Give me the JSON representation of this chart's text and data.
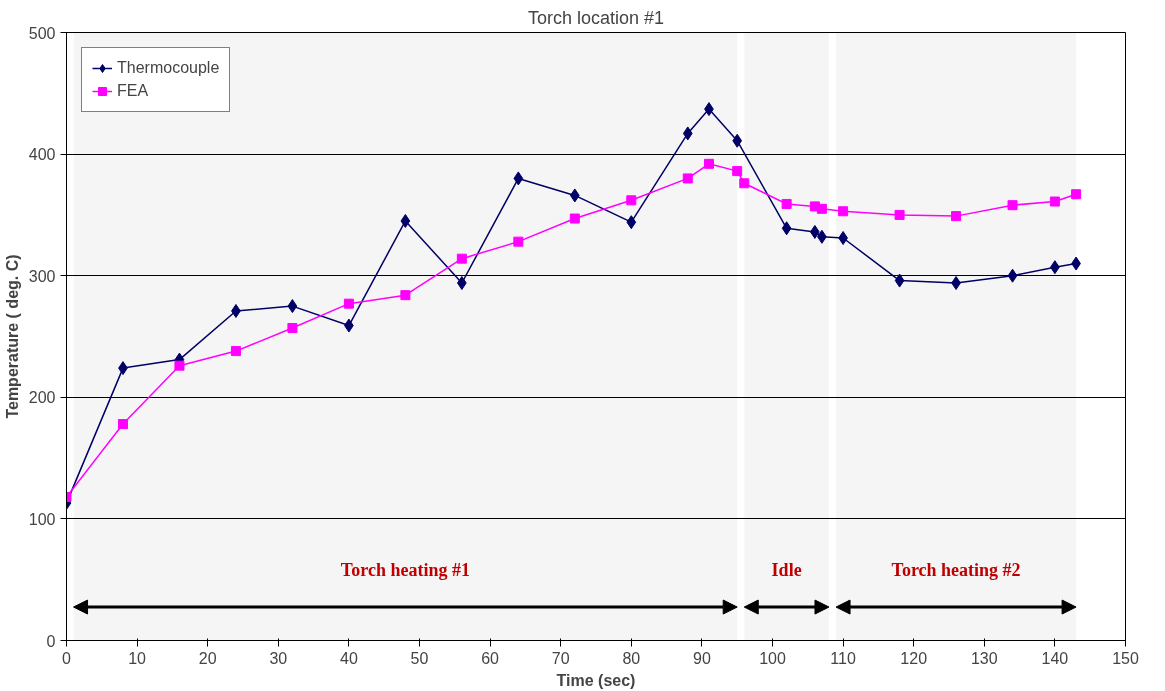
{
  "chart_data": {
    "type": "line",
    "title": "Torch location #1",
    "xlabel": "Time (sec)",
    "ylabel": "Temperature ( deg. C)",
    "xlim": [
      0,
      150
    ],
    "xticks": [
      0,
      10,
      20,
      30,
      40,
      50,
      60,
      70,
      80,
      90,
      100,
      110,
      120,
      130,
      140,
      150
    ],
    "ylim": [
      0,
      500
    ],
    "yticks": [
      0,
      100,
      200,
      300,
      400,
      500
    ],
    "grid": "y",
    "legend": "top left",
    "series": [
      {
        "name": "Thermocouple",
        "color": "#000066",
        "marker": "diamond",
        "x": [
          0,
          8,
          16,
          24,
          32,
          40,
          48,
          56,
          64,
          72,
          80,
          88,
          91,
          95,
          102,
          106,
          107,
          110,
          118,
          126,
          134,
          140,
          143
        ],
        "values": [
          113,
          224,
          231,
          271,
          275,
          259,
          345,
          294,
          380,
          366,
          344,
          417,
          437,
          411,
          339,
          336,
          332,
          331,
          296,
          294,
          300,
          307,
          310
        ]
      },
      {
        "name": "FEA",
        "color": "#ff00ff",
        "marker": "square",
        "x": [
          0,
          8,
          16,
          24,
          32,
          40,
          48,
          56,
          64,
          72,
          80,
          88,
          91,
          95,
          96,
          102,
          106,
          107,
          110,
          118,
          126,
          134,
          140,
          143
        ],
        "values": [
          118,
          178,
          226,
          238,
          257,
          277,
          284,
          314,
          328,
          347,
          362,
          380,
          392,
          386,
          376,
          359,
          357,
          355,
          353,
          350,
          349,
          358,
          361,
          367
        ]
      }
    ],
    "bands": [
      {
        "axis": "x",
        "from": 1,
        "to": 95,
        "label": "Torch heating #1",
        "color": "#000000"
      },
      {
        "axis": "x",
        "from": 96,
        "to": 108,
        "label": "Idle",
        "color": "#000000"
      },
      {
        "axis": "x",
        "from": 109,
        "to": 143,
        "label": "Torch heating #2",
        "color": "#000000"
      }
    ]
  }
}
